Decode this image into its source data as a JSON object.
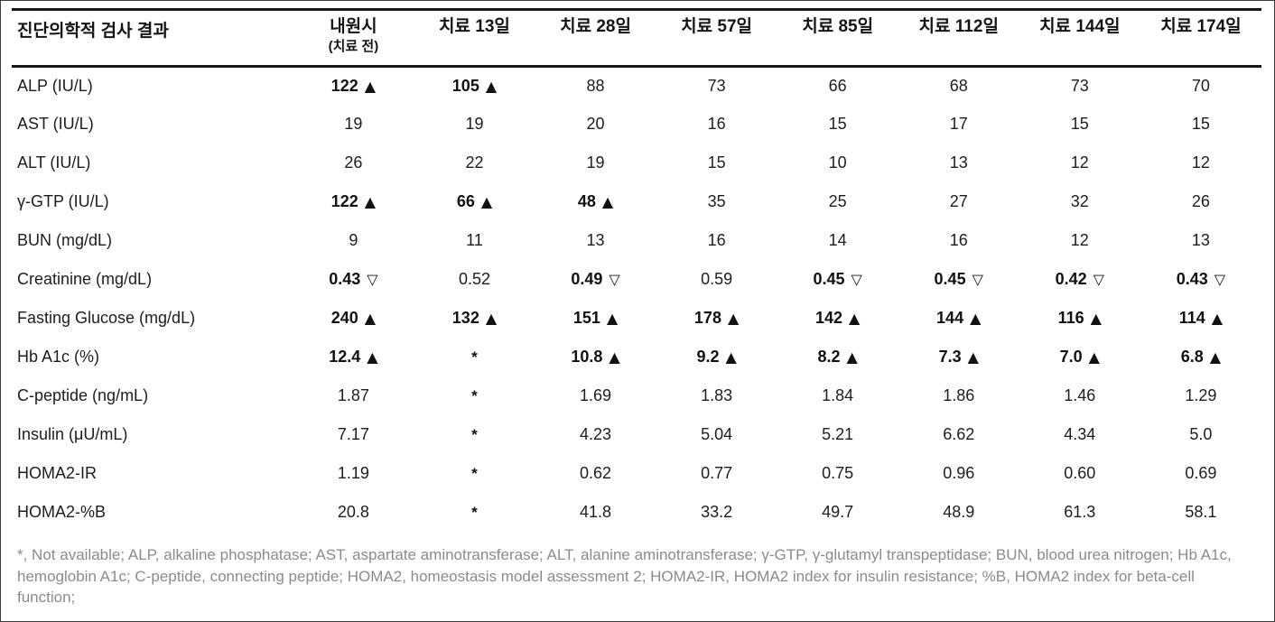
{
  "markers": {
    "high": "▲",
    "low": "▽"
  },
  "colors": {
    "rule": "#161616",
    "table_text": "#1d1d1d",
    "bold_text": "#111111",
    "footnote_text": "#8b8b8b",
    "background": "#ffffff"
  },
  "table": {
    "row_header_label": "진단의학적 검사 결과",
    "columns": [
      {
        "label": "내원시",
        "sublabel": "(치료 전)"
      },
      {
        "label": "치료 13일",
        "sublabel": ""
      },
      {
        "label": "치료 28일",
        "sublabel": ""
      },
      {
        "label": "치료 57일",
        "sublabel": ""
      },
      {
        "label": "치료 85일",
        "sublabel": ""
      },
      {
        "label": "치료 112일",
        "sublabel": ""
      },
      {
        "label": "치료 144일",
        "sublabel": ""
      },
      {
        "label": "치료 174일",
        "sublabel": ""
      }
    ],
    "rows": [
      {
        "label": "ALP (IU/L)",
        "cells": [
          {
            "value": "122",
            "marker": "up",
            "bold": true
          },
          {
            "value": "105",
            "marker": "up",
            "bold": true
          },
          {
            "value": "88",
            "marker": "",
            "bold": false
          },
          {
            "value": "73",
            "marker": "",
            "bold": false
          },
          {
            "value": "66",
            "marker": "",
            "bold": false
          },
          {
            "value": "68",
            "marker": "",
            "bold": false
          },
          {
            "value": "73",
            "marker": "",
            "bold": false
          },
          {
            "value": "70",
            "marker": "",
            "bold": false
          }
        ]
      },
      {
        "label": "AST (IU/L)",
        "cells": [
          {
            "value": "19",
            "marker": "",
            "bold": false
          },
          {
            "value": "19",
            "marker": "",
            "bold": false
          },
          {
            "value": "20",
            "marker": "",
            "bold": false
          },
          {
            "value": "16",
            "marker": "",
            "bold": false
          },
          {
            "value": "15",
            "marker": "",
            "bold": false
          },
          {
            "value": "17",
            "marker": "",
            "bold": false
          },
          {
            "value": "15",
            "marker": "",
            "bold": false
          },
          {
            "value": "15",
            "marker": "",
            "bold": false
          }
        ]
      },
      {
        "label": "ALT (IU/L)",
        "cells": [
          {
            "value": "26",
            "marker": "",
            "bold": false
          },
          {
            "value": "22",
            "marker": "",
            "bold": false
          },
          {
            "value": "19",
            "marker": "",
            "bold": false
          },
          {
            "value": "15",
            "marker": "",
            "bold": false
          },
          {
            "value": "10",
            "marker": "",
            "bold": false
          },
          {
            "value": "13",
            "marker": "",
            "bold": false
          },
          {
            "value": "12",
            "marker": "",
            "bold": false
          },
          {
            "value": "12",
            "marker": "",
            "bold": false
          }
        ]
      },
      {
        "label": "γ-GTP (IU/L)",
        "cells": [
          {
            "value": "122",
            "marker": "up",
            "bold": true
          },
          {
            "value": "66",
            "marker": "up",
            "bold": true
          },
          {
            "value": "48",
            "marker": "up",
            "bold": true
          },
          {
            "value": "35",
            "marker": "",
            "bold": false
          },
          {
            "value": "25",
            "marker": "",
            "bold": false
          },
          {
            "value": "27",
            "marker": "",
            "bold": false
          },
          {
            "value": "32",
            "marker": "",
            "bold": false
          },
          {
            "value": "26",
            "marker": "",
            "bold": false
          }
        ]
      },
      {
        "label": "BUN (mg/dL)",
        "cells": [
          {
            "value": "9",
            "marker": "",
            "bold": false
          },
          {
            "value": "11",
            "marker": "",
            "bold": false
          },
          {
            "value": "13",
            "marker": "",
            "bold": false
          },
          {
            "value": "16",
            "marker": "",
            "bold": false
          },
          {
            "value": "14",
            "marker": "",
            "bold": false
          },
          {
            "value": "16",
            "marker": "",
            "bold": false
          },
          {
            "value": "12",
            "marker": "",
            "bold": false
          },
          {
            "value": "13",
            "marker": "",
            "bold": false
          }
        ]
      },
      {
        "label": "Creatinine (mg/dL)",
        "cells": [
          {
            "value": "0.43",
            "marker": "down",
            "bold": true
          },
          {
            "value": "0.52",
            "marker": "",
            "bold": false
          },
          {
            "value": "0.49",
            "marker": "down",
            "bold": true
          },
          {
            "value": "0.59",
            "marker": "",
            "bold": false
          },
          {
            "value": "0.45",
            "marker": "down",
            "bold": true
          },
          {
            "value": "0.45",
            "marker": "down",
            "bold": true
          },
          {
            "value": "0.42",
            "marker": "down",
            "bold": true
          },
          {
            "value": "0.43",
            "marker": "down",
            "bold": true
          }
        ]
      },
      {
        "label": "Fasting Glucose (mg/dL)",
        "cells": [
          {
            "value": "240",
            "marker": "up",
            "bold": true
          },
          {
            "value": "132",
            "marker": "up",
            "bold": true
          },
          {
            "value": "151",
            "marker": "up",
            "bold": true
          },
          {
            "value": "178",
            "marker": "up",
            "bold": true
          },
          {
            "value": "142",
            "marker": "up",
            "bold": true
          },
          {
            "value": "144",
            "marker": "up",
            "bold": true
          },
          {
            "value": "116",
            "marker": "up",
            "bold": true
          },
          {
            "value": "114",
            "marker": "up",
            "bold": true
          }
        ]
      },
      {
        "label": "Hb A1c (%)",
        "cells": [
          {
            "value": "12.4",
            "marker": "up",
            "bold": true
          },
          {
            "value": "*",
            "marker": "",
            "bold": true
          },
          {
            "value": "10.8",
            "marker": "up",
            "bold": true
          },
          {
            "value": "9.2",
            "marker": "up",
            "bold": true
          },
          {
            "value": "8.2",
            "marker": "up",
            "bold": true
          },
          {
            "value": "7.3",
            "marker": "up",
            "bold": true
          },
          {
            "value": "7.0",
            "marker": "up",
            "bold": true
          },
          {
            "value": "6.8",
            "marker": "up",
            "bold": true
          }
        ]
      },
      {
        "label": "C-peptide (ng/mL)",
        "cells": [
          {
            "value": "1.87",
            "marker": "",
            "bold": false
          },
          {
            "value": "*",
            "marker": "",
            "bold": true
          },
          {
            "value": "1.69",
            "marker": "",
            "bold": false
          },
          {
            "value": "1.83",
            "marker": "",
            "bold": false
          },
          {
            "value": "1.84",
            "marker": "",
            "bold": false
          },
          {
            "value": "1.86",
            "marker": "",
            "bold": false
          },
          {
            "value": "1.46",
            "marker": "",
            "bold": false
          },
          {
            "value": "1.29",
            "marker": "",
            "bold": false
          }
        ]
      },
      {
        "label": "Insulin (μU/mL)",
        "cells": [
          {
            "value": "7.17",
            "marker": "",
            "bold": false
          },
          {
            "value": "*",
            "marker": "",
            "bold": true
          },
          {
            "value": "4.23",
            "marker": "",
            "bold": false
          },
          {
            "value": "5.04",
            "marker": "",
            "bold": false
          },
          {
            "value": "5.21",
            "marker": "",
            "bold": false
          },
          {
            "value": "6.62",
            "marker": "",
            "bold": false
          },
          {
            "value": "4.34",
            "marker": "",
            "bold": false
          },
          {
            "value": "5.0",
            "marker": "",
            "bold": false
          }
        ]
      },
      {
        "label": "HOMA2-IR",
        "cells": [
          {
            "value": "1.19",
            "marker": "",
            "bold": false
          },
          {
            "value": "*",
            "marker": "",
            "bold": true
          },
          {
            "value": "0.62",
            "marker": "",
            "bold": false
          },
          {
            "value": "0.77",
            "marker": "",
            "bold": false
          },
          {
            "value": "0.75",
            "marker": "",
            "bold": false
          },
          {
            "value": "0.96",
            "marker": "",
            "bold": false
          },
          {
            "value": "0.60",
            "marker": "",
            "bold": false
          },
          {
            "value": "0.69",
            "marker": "",
            "bold": false
          }
        ]
      },
      {
        "label": "HOMA2-%B",
        "cells": [
          {
            "value": "20.8",
            "marker": "",
            "bold": false
          },
          {
            "value": "*",
            "marker": "",
            "bold": true
          },
          {
            "value": "41.8",
            "marker": "",
            "bold": false
          },
          {
            "value": "33.2",
            "marker": "",
            "bold": false
          },
          {
            "value": "49.7",
            "marker": "",
            "bold": false
          },
          {
            "value": "48.9",
            "marker": "",
            "bold": false
          },
          {
            "value": "61.3",
            "marker": "",
            "bold": false
          },
          {
            "value": "58.1",
            "marker": "",
            "bold": false
          }
        ]
      }
    ]
  },
  "footnote": {
    "text": "*, Not available; ALP, alkaline phosphatase; AST, aspartate aminotransferase; ALT, alanine aminotransferase; γ-GTP, γ-glutamyl transpeptidase; BUN, blood urea nitrogen; Hb A1c, hemoglobin A1c; C-peptide, connecting peptide; HOMA2, homeostasis model assessment 2; HOMA2-IR, HOMA2 index for insulin resistance; %B, HOMA2 index for beta-cell function;"
  }
}
